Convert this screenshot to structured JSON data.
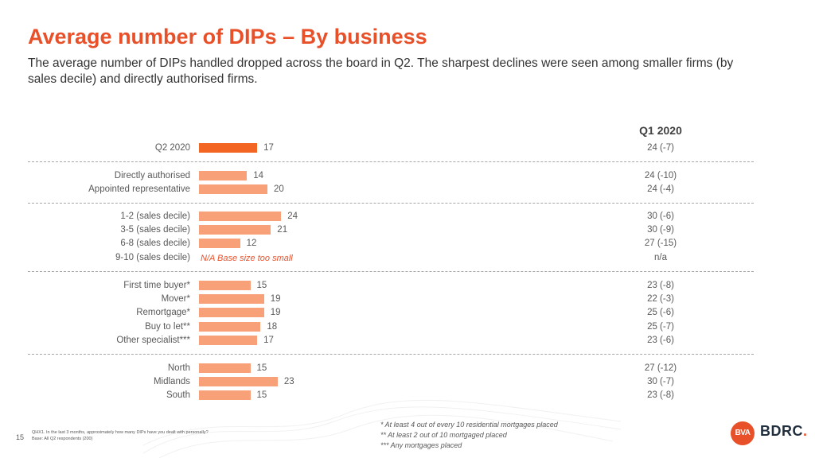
{
  "title": "Average number of DIPs – By business",
  "subtitle": "The average number of DIPs handled dropped across the board in Q2. The sharpest declines were seen among smaller firms (by sales decile) and directly authorised firms.",
  "colors": {
    "accent": "#e8502a",
    "highlight_bar": "#f26522",
    "bar": "#f8a078",
    "divider": "#a6a6a6"
  },
  "chart_data": {
    "type": "bar",
    "orientation": "horizontal",
    "comparison_header": "Q1 2020",
    "groups": [
      {
        "rows": [
          {
            "label": "Q2 2020",
            "value": 17,
            "q1": "24 (-7)",
            "highlight": true
          }
        ]
      },
      {
        "rows": [
          {
            "label": "Directly authorised",
            "value": 14,
            "q1": "24 (-10)"
          },
          {
            "label": "Appointed representative",
            "value": 20,
            "q1": "24 (-4)"
          }
        ]
      },
      {
        "rows": [
          {
            "label": "1-2 (sales decile)",
            "value": 24,
            "q1": "30 (-6)"
          },
          {
            "label": "3-5 (sales decile)",
            "value": 21,
            "q1": "30 (-9)"
          },
          {
            "label": "6-8 (sales decile)",
            "value": 12,
            "q1": "27 (-15)"
          },
          {
            "label": "9-10 (sales decile)",
            "value": null,
            "note": "N/A Base size too small",
            "q1": "n/a"
          }
        ]
      },
      {
        "rows": [
          {
            "label": "First time buyer*",
            "value": 15,
            "q1": "23 (-8)"
          },
          {
            "label": "Mover*",
            "value": 19,
            "q1": "22 (-3)"
          },
          {
            "label": "Remortgage*",
            "value": 19,
            "q1": "25 (-6)"
          },
          {
            "label": "Buy to let**",
            "value": 18,
            "q1": "25 (-7)"
          },
          {
            "label": "Other specialist***",
            "value": 17,
            "q1": "23 (-6)"
          }
        ]
      },
      {
        "rows": [
          {
            "label": "North",
            "value": 15,
            "q1": "27 (-12)"
          },
          {
            "label": "Midlands",
            "value": 23,
            "q1": "30 (-7)"
          },
          {
            "label": "South",
            "value": 15,
            "q1": "23 (-8)"
          }
        ]
      }
    ]
  },
  "footer": {
    "question": "QHX1. In the last 3 months, approximately how many DIPs have you dealt with personally?",
    "base": "Base: All Q2 respondents (200)",
    "page_number": "15",
    "footnotes": [
      "* At least 4 out of every 10 residential mortgages placed",
      "** At least 2 out of 10 mortgaged placed",
      "*** Any mortgages placed"
    ]
  },
  "logo": {
    "mark": "BVA",
    "text": "BDRC"
  }
}
